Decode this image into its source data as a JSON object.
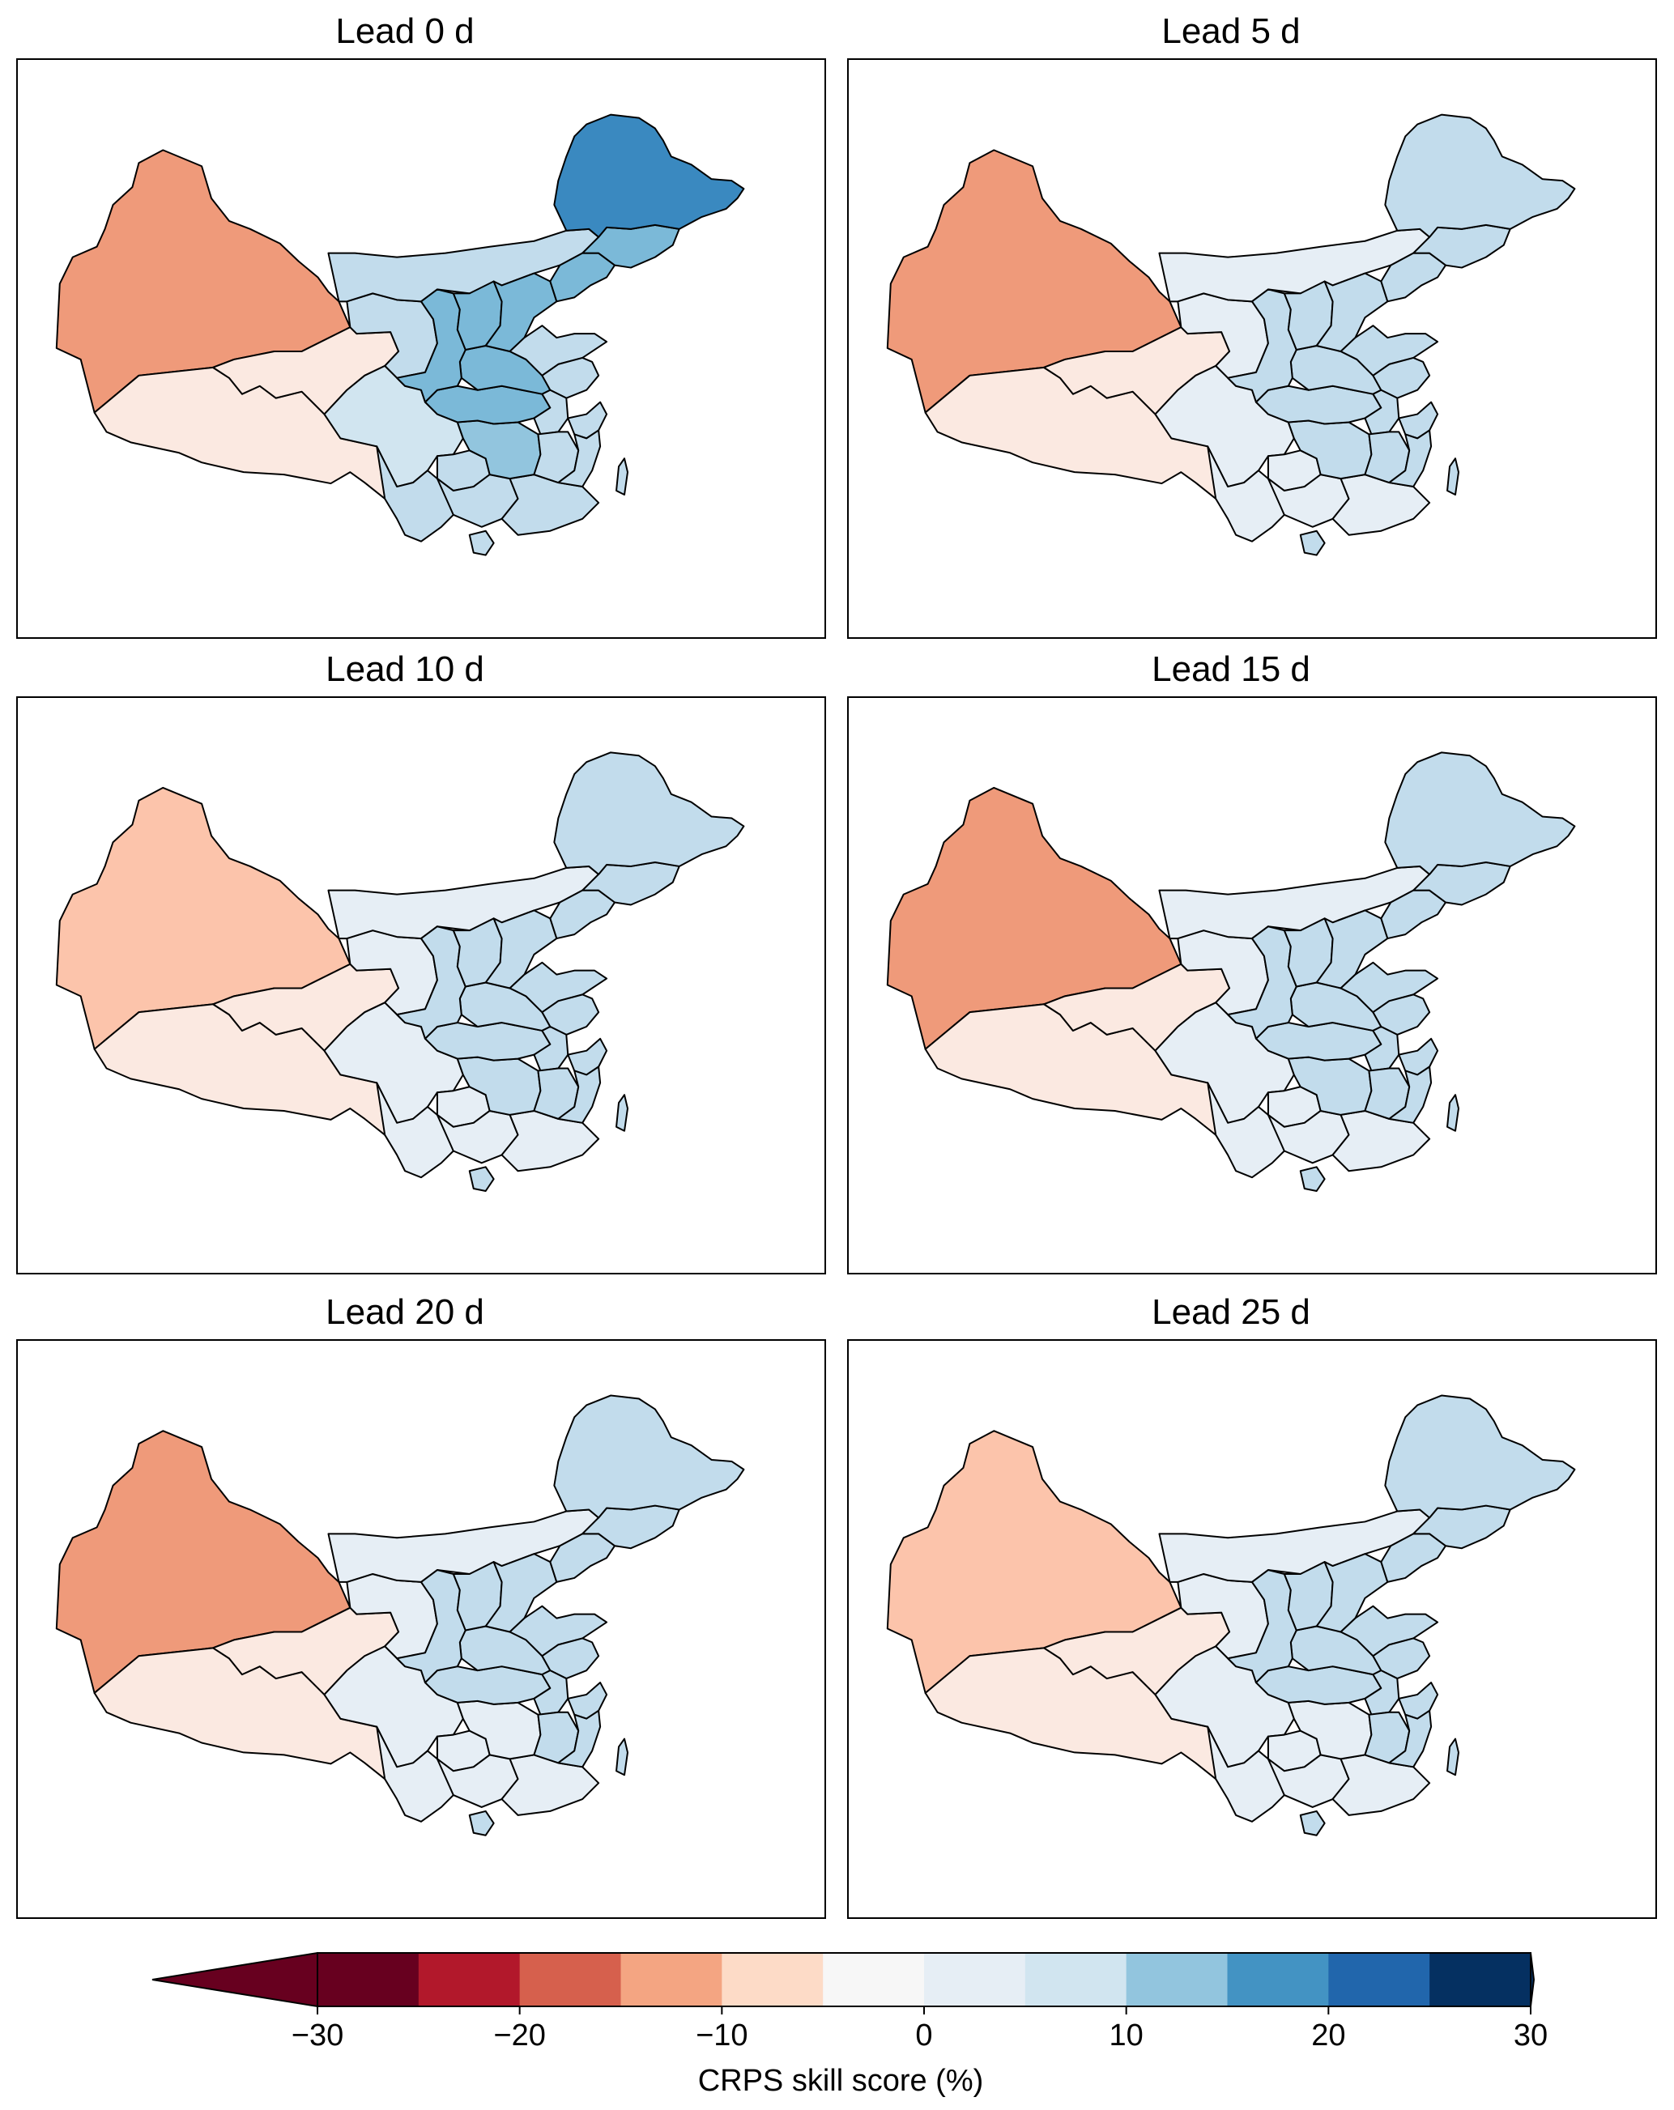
{
  "panels": [
    {
      "title": "Lead 0 d",
      "values": {
        "xinjiang": -12,
        "tibet": -2,
        "qinghai": -2,
        "gansu": 7,
        "inner_mongolia": 7,
        "sichuan": 8,
        "yunnan": 7,
        "guizhou": 7,
        "guangxi": 7,
        "guangdong": 7,
        "hunan": 11,
        "hubei": 12,
        "henan": 13,
        "shaanxi": 12,
        "shanxi": 12,
        "hebei": 12,
        "shandong": 7,
        "jiangsu": 7,
        "anhui": 7,
        "jiangxi": 7,
        "fujian": 7,
        "zhejiang": 7,
        "liaoning": 12,
        "jilin": 12,
        "heilongjiang": 17,
        "hainan": 7,
        "taiwan": 7
      }
    },
    {
      "title": "Lead 5 d",
      "values": {
        "xinjiang": -12,
        "tibet": -2,
        "qinghai": -2,
        "gansu": 2,
        "inner_mongolia": 2,
        "sichuan": 2,
        "yunnan": 2,
        "guizhou": 2,
        "guangxi": 2,
        "guangdong": 2,
        "hunan": 7,
        "hubei": 7,
        "henan": 7,
        "shaanxi": 7,
        "shanxi": 7,
        "hebei": 7,
        "shandong": 7,
        "jiangsu": 7,
        "anhui": 7,
        "jiangxi": 7,
        "fujian": 7,
        "zhejiang": 7,
        "liaoning": 7,
        "jilin": 7,
        "heilongjiang": 7,
        "hainan": 7,
        "taiwan": 7
      }
    },
    {
      "title": "Lead 10 d",
      "values": {
        "xinjiang": -7,
        "tibet": -2,
        "qinghai": -2,
        "gansu": 2,
        "inner_mongolia": 2,
        "sichuan": 2,
        "yunnan": 2,
        "guizhou": 2,
        "guangxi": 2,
        "guangdong": 2,
        "hunan": 7,
        "hubei": 7,
        "henan": 7,
        "shaanxi": 7,
        "shanxi": 7,
        "hebei": 7,
        "shandong": 7,
        "jiangsu": 7,
        "anhui": 7,
        "jiangxi": 7,
        "fujian": 7,
        "zhejiang": 7,
        "liaoning": 7,
        "jilin": 7,
        "heilongjiang": 7,
        "hainan": 7,
        "taiwan": 7
      }
    },
    {
      "title": "Lead 15 d",
      "values": {
        "xinjiang": -12,
        "tibet": -2,
        "qinghai": -2,
        "gansu": 2,
        "inner_mongolia": 2,
        "sichuan": 2,
        "yunnan": 2,
        "guizhou": 2,
        "guangxi": 2,
        "guangdong": 2,
        "hunan": 7,
        "hubei": 7,
        "henan": 7,
        "shaanxi": 7,
        "shanxi": 7,
        "hebei": 7,
        "shandong": 7,
        "jiangsu": 7,
        "anhui": 7,
        "jiangxi": 7,
        "fujian": 7,
        "zhejiang": 7,
        "liaoning": 7,
        "jilin": 7,
        "heilongjiang": 7,
        "hainan": 7,
        "taiwan": 7
      }
    },
    {
      "title": "Lead 20 d",
      "values": {
        "xinjiang": -12,
        "tibet": -2,
        "qinghai": -2,
        "gansu": 2,
        "inner_mongolia": 2,
        "sichuan": 2,
        "yunnan": 2,
        "guizhou": 2,
        "guangxi": 2,
        "guangdong": 2,
        "hunan": 2,
        "hubei": 7,
        "henan": 7,
        "shaanxi": 7,
        "shanxi": 7,
        "hebei": 7,
        "shandong": 7,
        "jiangsu": 7,
        "anhui": 7,
        "jiangxi": 7,
        "fujian": 7,
        "zhejiang": 7,
        "liaoning": 7,
        "jilin": 7,
        "heilongjiang": 7,
        "hainan": 7,
        "taiwan": 7
      }
    },
    {
      "title": "Lead 25 d",
      "values": {
        "xinjiang": -7,
        "tibet": -2,
        "qinghai": -2,
        "gansu": 2,
        "inner_mongolia": 2,
        "sichuan": 2,
        "yunnan": 2,
        "guizhou": 2,
        "guangxi": 2,
        "guangdong": 2,
        "hunan": 2,
        "hubei": 7,
        "henan": 7,
        "shaanxi": 7,
        "shanxi": 7,
        "hebei": 7,
        "shandong": 7,
        "jiangsu": 7,
        "anhui": 7,
        "jiangxi": 7,
        "fujian": 7,
        "zhejiang": 7,
        "liaoning": 7,
        "jilin": 7,
        "heilongjiang": 7,
        "hainan": 7,
        "taiwan": 7
      }
    }
  ],
  "colorbar": {
    "label": "CRPS skill score (%)",
    "ticks": [
      "−30",
      "−20",
      "−10",
      "0",
      "10",
      "20",
      "30"
    ],
    "boundaries": [
      -30,
      -25,
      -20,
      -15,
      -10,
      -5,
      0,
      5,
      10,
      15,
      20,
      25,
      30
    ],
    "colors": [
      "#67001f",
      "#b2182b",
      "#d6604d",
      "#f4a582",
      "#fddbc7",
      "#f7f7f7",
      "#e6eef5",
      "#d1e5f0",
      "#92c5de",
      "#4393c3",
      "#2166ac",
      "#053061"
    ],
    "extend_low_color": "#67001f",
    "extend_high_color": "#053061",
    "palette": {
      "-12": "#ef9a7a",
      "-7": "#fcc4ab",
      "-2": "#fbe9e1",
      "2": "#e6eef5",
      "7": "#c2dcec",
      "12": "#7bb9d8",
      "13": "#7bb9d8",
      "17": "#3a89c0"
    }
  }
}
